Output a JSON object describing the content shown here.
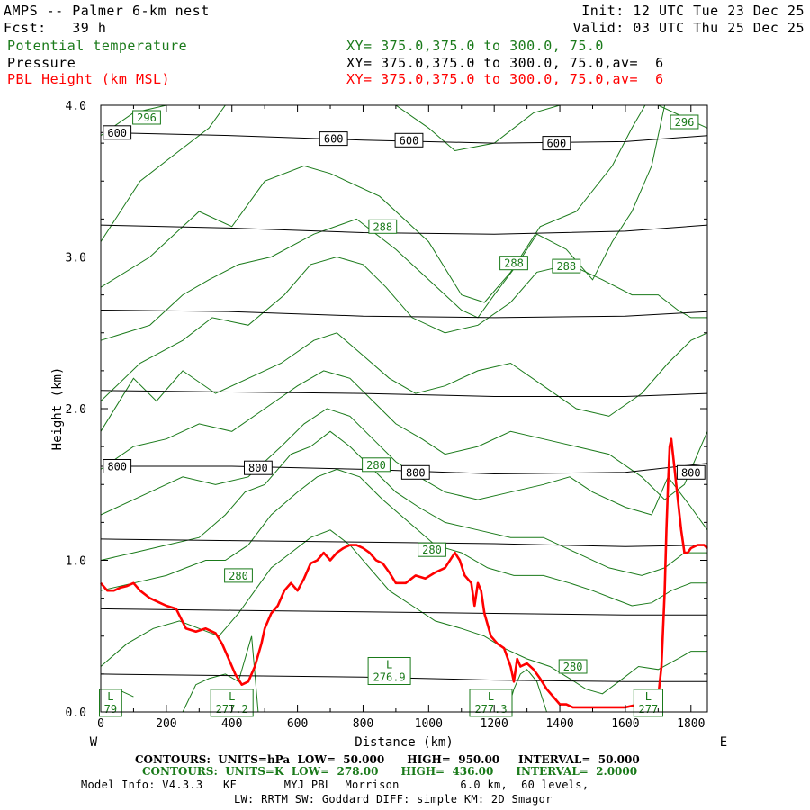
{
  "header": {
    "model_line": "AMPS -- Palmer 6-km nest",
    "init_line": "Init: 12 UTC Tue 23 Dec 25",
    "fcst_line": "Fcst:   39 h",
    "valid_line": "Valid: 03 UTC Thu 25 Dec 25",
    "field1_name": "Potential temperature",
    "field1_xy": "XY= 375.0,375.0 to 300.0, 75.0",
    "field2_name": "Pressure",
    "field2_xy": "XY= 375.0,375.0 to 300.0, 75.0,av=  6",
    "field3_name": "PBL Height (km MSL)",
    "field3_xy": "XY= 375.0,375.0 to 300.0, 75.0,av=  6"
  },
  "colors": {
    "theta": "#1a7a1a",
    "pressure": "#000000",
    "pbl": "#ff0000"
  },
  "chart_data": {
    "type": "line",
    "xlabel": "Distance (km)",
    "ylabel": "Height (km)",
    "xlim": [
      0,
      1850
    ],
    "ylim": [
      0,
      4.0
    ],
    "x_ticks": [
      0,
      200,
      400,
      600,
      800,
      1000,
      1200,
      1400,
      1600,
      1800
    ],
    "x_tick_labels": [
      "0",
      "200",
      "400",
      "600",
      "800",
      "1000",
      "1200",
      "1400",
      "1600",
      "1800"
    ],
    "y_ticks": [
      0,
      1,
      2,
      3,
      4
    ],
    "y_tick_labels": [
      "0.0",
      "1.0",
      "2.0",
      "3.0",
      "4.0"
    ],
    "left_end_label": "W",
    "right_end_label": "E",
    "pressure_contours": [
      {
        "label": "600",
        "x": [
          0,
          400,
          800,
          1200,
          1600,
          1850
        ],
        "y": [
          3.82,
          3.8,
          3.77,
          3.75,
          3.76,
          3.8
        ]
      },
      {
        "label": "",
        "x": [
          0,
          400,
          800,
          1200,
          1600,
          1850
        ],
        "y": [
          3.21,
          3.19,
          3.16,
          3.15,
          3.17,
          3.21
        ]
      },
      {
        "label": "",
        "x": [
          0,
          400,
          800,
          1200,
          1600,
          1850
        ],
        "y": [
          2.65,
          2.64,
          2.61,
          2.6,
          2.61,
          2.64
        ]
      },
      {
        "label": "",
        "x": [
          0,
          400,
          800,
          1200,
          1600,
          1850
        ],
        "y": [
          2.12,
          2.11,
          2.1,
          2.08,
          2.08,
          2.1
        ]
      },
      {
        "label": "800",
        "x": [
          0,
          400,
          800,
          1200,
          1600,
          1850
        ],
        "y": [
          1.62,
          1.62,
          1.6,
          1.57,
          1.58,
          1.64
        ]
      },
      {
        "label": "",
        "x": [
          0,
          400,
          800,
          1200,
          1600,
          1850
        ],
        "y": [
          1.14,
          1.13,
          1.12,
          1.11,
          1.09,
          1.1
        ]
      },
      {
        "label": "",
        "x": [
          0,
          400,
          800,
          1200,
          1600,
          1850
        ],
        "y": [
          0.68,
          0.67,
          0.66,
          0.65,
          0.64,
          0.64
        ]
      },
      {
        "label": "",
        "x": [
          0,
          400,
          800,
          1200,
          1600,
          1850
        ],
        "y": [
          0.25,
          0.24,
          0.23,
          0.21,
          0.2,
          0.2
        ]
      }
    ],
    "theta_contours": [
      {
        "x": [
          0,
          100,
          200,
          300,
          350
        ],
        "y": [
          3.8,
          3.95,
          4.0,
          4.0,
          4.0
        ]
      },
      {
        "x": [
          0,
          120,
          240,
          330,
          380,
          500,
          700,
          900,
          1000,
          1080,
          1200,
          1320,
          1400,
          1500,
          1600,
          1700,
          1800,
          1850
        ],
        "y": [
          3.1,
          3.5,
          3.7,
          3.85,
          4.0,
          4.0,
          4.0,
          4.0,
          3.85,
          3.7,
          3.75,
          3.95,
          4.0,
          4.0,
          4.0,
          4.0,
          3.9,
          3.85
        ]
      },
      {
        "x": [
          0,
          150,
          300,
          400,
          500,
          620,
          700,
          850,
          1000,
          1100,
          1170,
          1250,
          1340,
          1450,
          1560,
          1620,
          1660
        ],
        "y": [
          2.8,
          3.0,
          3.3,
          3.2,
          3.5,
          3.6,
          3.55,
          3.4,
          3.1,
          2.75,
          2.7,
          2.9,
          3.2,
          3.3,
          3.6,
          3.85,
          4.0
        ]
      },
      {
        "x": [
          0,
          150,
          250,
          330,
          420,
          520,
          650,
          780,
          900,
          1000,
          1100,
          1150,
          1200,
          1270,
          1330,
          1420,
          1500,
          1560,
          1620,
          1680,
          1720
        ],
        "y": [
          2.45,
          2.55,
          2.75,
          2.85,
          2.95,
          3.0,
          3.15,
          3.25,
          3.05,
          2.85,
          2.65,
          2.6,
          2.75,
          2.95,
          3.15,
          3.05,
          2.85,
          3.1,
          3.3,
          3.6,
          4.0
        ]
      },
      {
        "x": [
          0,
          120,
          250,
          340,
          450,
          560,
          640,
          720,
          800,
          870,
          950,
          1050,
          1150,
          1250,
          1330,
          1430,
          1530,
          1620,
          1700,
          1760,
          1800,
          1850
        ],
        "y": [
          2.05,
          2.3,
          2.45,
          2.6,
          2.55,
          2.75,
          2.95,
          3.0,
          2.95,
          2.8,
          2.6,
          2.5,
          2.55,
          2.7,
          2.9,
          2.95,
          2.85,
          2.75,
          2.75,
          2.65,
          2.6,
          2.6
        ]
      },
      {
        "x": [
          0,
          100,
          170,
          250,
          350,
          450,
          550,
          650,
          720,
          800,
          880,
          960,
          1050,
          1150,
          1250,
          1350,
          1450,
          1550,
          1650,
          1730,
          1800,
          1850
        ],
        "y": [
          1.85,
          2.2,
          2.05,
          2.25,
          2.1,
          2.2,
          2.3,
          2.45,
          2.5,
          2.35,
          2.2,
          2.1,
          2.15,
          2.25,
          2.3,
          2.15,
          2.0,
          1.95,
          2.1,
          2.3,
          2.45,
          2.5
        ]
      },
      {
        "x": [
          0,
          100,
          200,
          300,
          400,
          500,
          600,
          680,
          760,
          830,
          900,
          980,
          1050,
          1150,
          1250,
          1350,
          1450,
          1550,
          1650,
          1720,
          1780,
          1850
        ],
        "y": [
          1.6,
          1.75,
          1.8,
          1.9,
          1.85,
          2.0,
          2.15,
          2.25,
          2.2,
          2.05,
          1.9,
          1.8,
          1.7,
          1.75,
          1.85,
          1.8,
          1.75,
          1.7,
          1.55,
          1.4,
          1.5,
          1.85
        ]
      },
      {
        "x": [
          0,
          150,
          250,
          350,
          450,
          550,
          620,
          690,
          760,
          830,
          900,
          970,
          1050,
          1150,
          1250,
          1350,
          1430,
          1500,
          1600,
          1680,
          1730,
          1800,
          1850
        ],
        "y": [
          1.3,
          1.45,
          1.55,
          1.5,
          1.55,
          1.75,
          1.9,
          2.0,
          1.95,
          1.8,
          1.65,
          1.55,
          1.45,
          1.4,
          1.45,
          1.5,
          1.55,
          1.45,
          1.35,
          1.3,
          1.55,
          1.35,
          1.2
        ]
      },
      {
        "x": [
          0,
          100,
          200,
          300,
          380,
          440,
          500,
          580,
          640,
          700,
          760,
          830,
          900,
          970,
          1050,
          1150,
          1250,
          1350,
          1450,
          1550,
          1650,
          1720,
          1780,
          1850
        ],
        "y": [
          1.0,
          1.05,
          1.1,
          1.15,
          1.3,
          1.45,
          1.5,
          1.7,
          1.75,
          1.85,
          1.75,
          1.6,
          1.45,
          1.35,
          1.25,
          1.2,
          1.15,
          1.15,
          1.05,
          0.95,
          0.9,
          0.95,
          1.05,
          1.05
        ]
      },
      {
        "x": [
          0,
          100,
          200,
          260,
          320,
          380,
          450,
          520,
          600,
          660,
          720,
          790,
          860,
          940,
          1020,
          1100,
          1180,
          1260,
          1350,
          1430,
          1500,
          1560,
          1620,
          1680,
          1740,
          1800,
          1850
        ],
        "y": [
          0.8,
          0.85,
          0.9,
          0.95,
          1.0,
          1.0,
          1.1,
          1.3,
          1.45,
          1.55,
          1.6,
          1.55,
          1.4,
          1.25,
          1.1,
          1.05,
          0.95,
          0.9,
          0.9,
          0.85,
          0.8,
          0.75,
          0.7,
          0.72,
          0.8,
          0.85,
          0.85
        ]
      },
      {
        "x": [
          0,
          80,
          160,
          240,
          300,
          360,
          420,
          470,
          520,
          580,
          640,
          700,
          760,
          820,
          880,
          950,
          1020,
          1100,
          1170,
          1230,
          1300,
          1370,
          1430,
          1480,
          1530,
          1580,
          1640,
          1700,
          1760,
          1800,
          1850
        ],
        "y": [
          0.3,
          0.45,
          0.55,
          0.6,
          0.55,
          0.5,
          0.65,
          0.8,
          0.95,
          1.05,
          1.15,
          1.2,
          1.1,
          0.95,
          0.8,
          0.7,
          0.6,
          0.55,
          0.5,
          0.42,
          0.35,
          0.3,
          0.22,
          0.15,
          0.12,
          0.2,
          0.3,
          0.28,
          0.35,
          0.4,
          0.4
        ]
      },
      {
        "x": [
          0,
          50,
          100
        ],
        "y": [
          0.0,
          0.15,
          0.1
        ]
      },
      {
        "x": [
          250,
          290,
          330,
          380,
          420,
          440,
          460,
          480
        ],
        "y": [
          0.0,
          0.18,
          0.22,
          0.25,
          0.2,
          0.35,
          0.5,
          0.0
        ]
      },
      {
        "x": [
          1240,
          1260,
          1280,
          1300,
          1330,
          1360
        ],
        "y": [
          0.0,
          0.15,
          0.25,
          0.28,
          0.2,
          0.0
        ]
      }
    ],
    "theta_labels": [
      {
        "text": "296",
        "x": 140,
        "y": 3.92
      },
      {
        "text": "296",
        "x": 1780,
        "y": 3.89
      },
      {
        "text": "288",
        "x": 860,
        "y": 3.2
      },
      {
        "text": "288",
        "x": 1260,
        "y": 2.96
      },
      {
        "text": "288",
        "x": 1420,
        "y": 2.94
      },
      {
        "text": "280",
        "x": 840,
        "y": 1.63
      },
      {
        "text": "280",
        "x": 1010,
        "y": 1.07
      },
      {
        "text": "280",
        "x": 420,
        "y": 0.9
      },
      {
        "text": "280",
        "x": 1440,
        "y": 0.3
      }
    ],
    "pressure_labels": [
      {
        "text": "600",
        "x": 50,
        "y": 3.82
      },
      {
        "text": "600",
        "x": 710,
        "y": 3.78
      },
      {
        "text": "600",
        "x": 940,
        "y": 3.77
      },
      {
        "text": "600",
        "x": 1390,
        "y": 3.75
      },
      {
        "text": "800",
        "x": 50,
        "y": 1.62
      },
      {
        "text": "800",
        "x": 480,
        "y": 1.61
      },
      {
        "text": "800",
        "x": 960,
        "y": 1.58
      },
      {
        "text": "800",
        "x": 1800,
        "y": 1.58
      }
    ],
    "low_labels": [
      {
        "text": "L",
        "value": "79",
        "x": 30,
        "y": 0.06
      },
      {
        "text": "L",
        "value": "277.2",
        "x": 400,
        "y": 0.06
      },
      {
        "text": "L",
        "value": "276.9",
        "x": 880,
        "y": 0.27
      },
      {
        "text": "L",
        "value": "277.3",
        "x": 1190,
        "y": 0.06
      },
      {
        "text": "L",
        "value": "277",
        "x": 1670,
        "y": 0.06
      }
    ],
    "pbl_height": {
      "x": [
        0,
        20,
        40,
        60,
        80,
        100,
        120,
        150,
        180,
        200,
        230,
        260,
        290,
        320,
        350,
        370,
        390,
        410,
        430,
        450,
        470,
        490,
        500,
        520,
        540,
        560,
        580,
        600,
        620,
        640,
        660,
        680,
        700,
        720,
        740,
        760,
        780,
        800,
        820,
        840,
        860,
        880,
        900,
        930,
        960,
        990,
        1020,
        1050,
        1080,
        1095,
        1110,
        1130,
        1140,
        1150,
        1160,
        1170,
        1190,
        1210,
        1230,
        1250,
        1260,
        1270,
        1280,
        1300,
        1320,
        1340,
        1360,
        1380,
        1400,
        1420,
        1440,
        1460,
        1500,
        1550,
        1600,
        1640,
        1660,
        1680,
        1700,
        1710,
        1720,
        1725,
        1730,
        1735,
        1740,
        1750,
        1760,
        1770,
        1780,
        1790,
        1800,
        1820,
        1840,
        1850
      ],
      "y": [
        0.85,
        0.8,
        0.8,
        0.82,
        0.83,
        0.85,
        0.8,
        0.75,
        0.72,
        0.7,
        0.68,
        0.55,
        0.53,
        0.55,
        0.52,
        0.45,
        0.35,
        0.25,
        0.18,
        0.2,
        0.3,
        0.45,
        0.55,
        0.65,
        0.7,
        0.8,
        0.85,
        0.8,
        0.88,
        0.98,
        1.0,
        1.05,
        1.0,
        1.05,
        1.08,
        1.1,
        1.1,
        1.08,
        1.05,
        1.0,
        0.98,
        0.92,
        0.85,
        0.85,
        0.9,
        0.88,
        0.92,
        0.95,
        1.05,
        1.0,
        0.9,
        0.85,
        0.7,
        0.85,
        0.8,
        0.65,
        0.5,
        0.45,
        0.42,
        0.3,
        0.2,
        0.35,
        0.3,
        0.32,
        0.28,
        0.22,
        0.15,
        0.1,
        0.05,
        0.05,
        0.03,
        0.03,
        0.03,
        0.03,
        0.03,
        0.05,
        0.03,
        0.05,
        0.1,
        0.3,
        0.8,
        1.2,
        1.5,
        1.75,
        1.8,
        1.6,
        1.4,
        1.2,
        1.05,
        1.05,
        1.08,
        1.1,
        1.1,
        1.08
      ]
    }
  },
  "footer": {
    "contours_black": "CONTOURS:  UNITS=hPa  LOW=  50.000      HIGH=  950.00     INTERVAL=  50.000",
    "contours_green": "CONTOURS:  UNITS=K  LOW=  278.00      HIGH=  436.00      INTERVAL=  2.0000",
    "model_info": "Model Info: V4.3.3   KF       MYJ PBL  Morrison         6.0 km,  60 levels,",
    "model_info2": "LW: RRTM SW: Goddard DIFF: simple KM: 2D Smagor"
  }
}
